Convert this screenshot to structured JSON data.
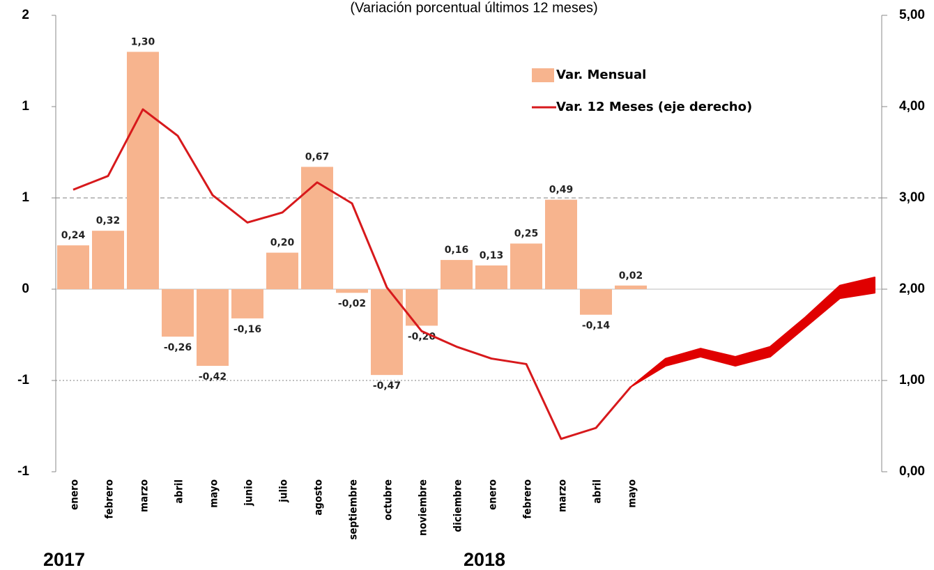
{
  "chart_data": {
    "type": "bar-line",
    "title": "(Variación porcentual últimos 12 meses)",
    "categories": [
      "enero",
      "febrero",
      "marzo",
      "abril",
      "mayo",
      "junio",
      "julio",
      "agosto",
      "septiembre",
      "octubre",
      "noviembre",
      "diciembre",
      "enero",
      "febrero",
      "marzo",
      "abril",
      "mayo",
      null,
      null,
      null,
      null,
      null,
      null,
      null
    ],
    "year_labels": [
      "2017",
      "2018"
    ],
    "series": [
      {
        "name": "Var. Mensual",
        "color": "#f7b48e",
        "values": [
          0.24,
          0.32,
          1.3,
          -0.26,
          -0.42,
          -0.16,
          0.2,
          0.67,
          -0.02,
          -0.47,
          -0.2,
          0.16,
          0.13,
          0.25,
          0.49,
          -0.14,
          0.02,
          null,
          null,
          null,
          null,
          null,
          null,
          null
        ],
        "value_labels": [
          "0,24",
          "0,32",
          "1,30",
          "-0,26",
          "-0,42",
          "-0,16",
          "0,20",
          "0,67",
          "-0,02",
          "-0,47",
          "-0,20",
          "0,16",
          "0,13",
          "0,25",
          "0,49",
          "-0,14",
          "0,02",
          null,
          null,
          null,
          null,
          null,
          null,
          null
        ]
      },
      {
        "name": "Var. 12 Meses (eje derecho)",
        "color": "#d7191c",
        "axis": "y2",
        "values": [
          3.09,
          3.24,
          3.97,
          3.68,
          3.03,
          2.73,
          2.84,
          3.17,
          2.94,
          2.02,
          1.54,
          1.37,
          1.24,
          1.18,
          0.36,
          0.48,
          0.93,
          null,
          null,
          null,
          null,
          null,
          null,
          null
        ]
      }
    ],
    "band": {
      "color": "#e00000",
      "axis": "y2",
      "upper": [
        null,
        null,
        null,
        null,
        null,
        null,
        null,
        null,
        null,
        null,
        null,
        null,
        null,
        null,
        null,
        null,
        0.93,
        1.24,
        1.35,
        1.26,
        1.37,
        1.69,
        2.04,
        2.13
      ],
      "lower": [
        null,
        null,
        null,
        null,
        null,
        null,
        null,
        null,
        null,
        null,
        null,
        null,
        null,
        null,
        null,
        null,
        0.93,
        1.16,
        1.26,
        1.16,
        1.26,
        1.58,
        1.9,
        1.96
      ]
    },
    "ylim": [
      -1,
      1.5
    ],
    "yticks": [
      {
        "value": 1.5,
        "label": "2"
      },
      {
        "value": 1,
        "label": "1"
      },
      {
        "value": 0.5,
        "label": "1"
      },
      0,
      {
        "value": -0.5,
        "label": "-1"
      },
      {
        "value": -1,
        "label": "-1"
      }
    ],
    "y2lim": [
      0,
      5
    ],
    "y2ticks": [
      {
        "value": 5,
        "label": "5,00"
      },
      {
        "value": 4,
        "label": "4,00"
      },
      {
        "value": 3,
        "label": "3,00"
      },
      {
        "value": 2,
        "label": "2,00"
      },
      {
        "value": 1,
        "label": "1,00"
      },
      {
        "value": 0,
        "label": "0,00"
      }
    ],
    "y2_ref_lines": [
      3,
      1
    ],
    "legend": "top-right"
  }
}
